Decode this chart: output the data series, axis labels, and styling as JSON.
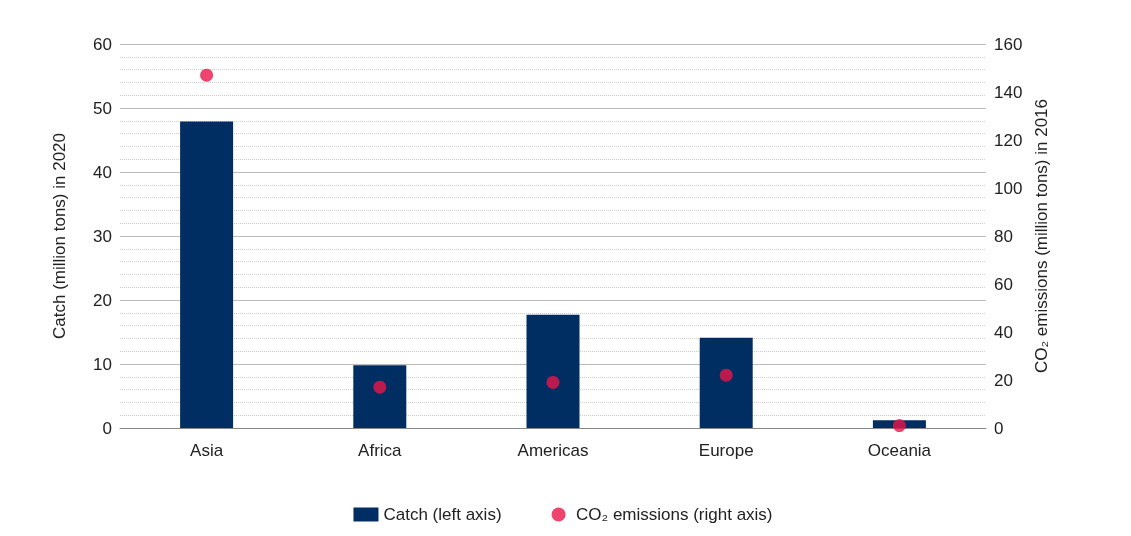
{
  "chart_data": {
    "type": "bar",
    "categories": [
      "Asia",
      "Africa",
      "Americas",
      "Europe",
      "Oceania"
    ],
    "ylabel": "Catch (million tons) in 2020",
    "y2label": "CO₂ emissions (million tons) in 2016",
    "series": [
      {
        "name": "Catch (left axis)",
        "color": "#002d62",
        "values": [
          47.9,
          9.8,
          17.7,
          14.1,
          1.2
        ]
      },
      {
        "name": "CO₂ emissions (right axis)",
        "type": "scatter",
        "axis": "y2",
        "color": "#e8174a",
        "marker": "circle",
        "values": [
          147,
          17,
          19,
          22,
          1
        ]
      }
    ],
    "ylim": [
      0,
      60
    ],
    "yticks": [
      0,
      10,
      20,
      30,
      40,
      50,
      60
    ],
    "y2lim": [
      0,
      160
    ],
    "y2ticks": [
      0,
      20,
      40,
      60,
      80,
      100,
      120,
      140,
      160
    ],
    "grid": "y",
    "legend": "bottom"
  }
}
